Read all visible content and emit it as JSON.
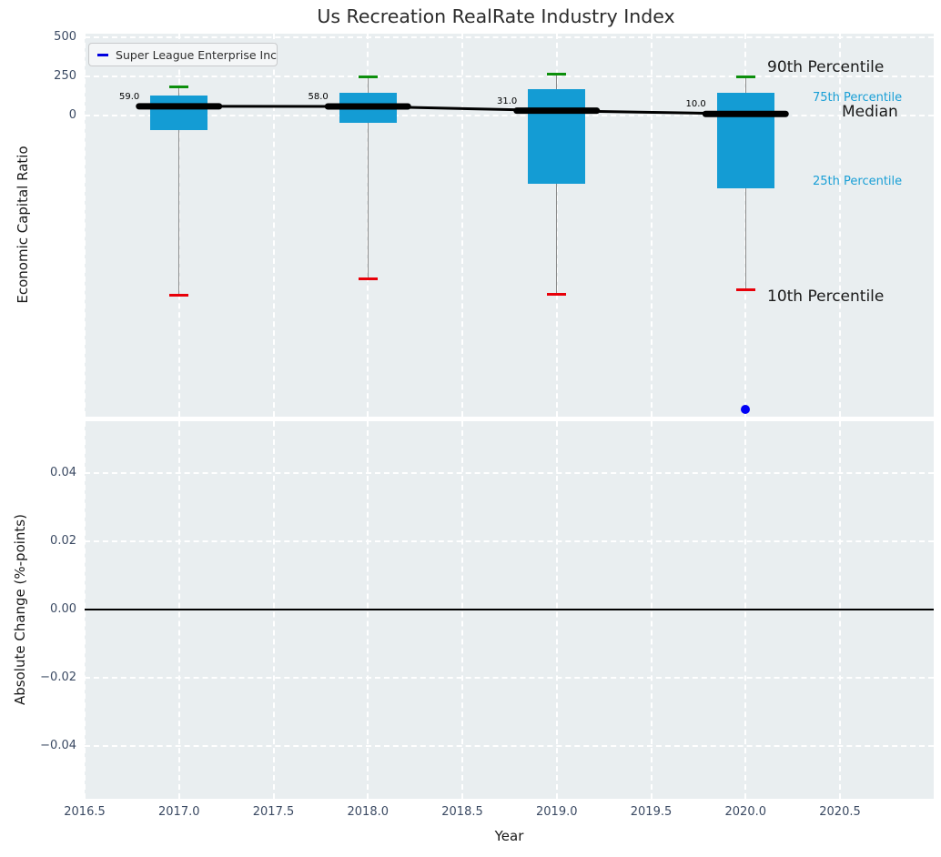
{
  "colors": {
    "box": "#149cd4",
    "percentile_text": "#199fd6",
    "whisker": "#8c8c8c",
    "cap_top": "#0c8f0c",
    "cap_bottom": "#e80009",
    "median_line": "#000000",
    "company_dot": "#0000f5",
    "legend_line": "#0000e0",
    "axes_bg": "#e9eef0",
    "grid": "#ffffff",
    "tick_text": "#3b4a63",
    "label_text": "#1a1a1a"
  },
  "chart_data": [
    {
      "type": "box",
      "title": "Us Recreation RealRate Industry Index",
      "ylabel": "Economic Capital Ratio",
      "legend": [
        "Super League Enterprise Inc"
      ],
      "x": [
        2017,
        2018,
        2019,
        2020
      ],
      "xlim": [
        2016.5,
        2021.0
      ],
      "ylim": [
        -1940,
        525
      ],
      "ytick_values": [
        500,
        250,
        0
      ],
      "ytick_labels": [
        "500",
        "250",
        "0"
      ],
      "grid": true,
      "boxes": [
        {
          "x": 2017,
          "p10": -1150,
          "p25": -95,
          "median": 59.0,
          "p75": 128,
          "p90": 186
        },
        {
          "x": 2018,
          "p10": -1045,
          "p25": -46,
          "median": 58.0,
          "p75": 145,
          "p90": 247
        },
        {
          "x": 2019,
          "p10": -1145,
          "p25": -435,
          "median": 31.0,
          "p75": 168,
          "p90": 267
        },
        {
          "x": 2020,
          "p10": -1115,
          "p25": -465,
          "median": 10.0,
          "p75": 145,
          "p90": 250
        }
      ],
      "median_labels": [
        "59.0",
        "58.0",
        "31.0",
        "10.0"
      ],
      "median_series": {
        "name": "Median",
        "values": [
          59.0,
          58.0,
          31.0,
          10.0
        ]
      },
      "company_scatter": {
        "name": "Super League Enterprise Inc",
        "points": [
          {
            "x": 2020,
            "y": -1880
          }
        ]
      },
      "annotations": [
        {
          "text": "90th Percentile",
          "style": "black-large"
        },
        {
          "text": "75th Percentile",
          "style": "blue-small"
        },
        {
          "text": "Median",
          "style": "black-large"
        },
        {
          "text": "25th Percentile",
          "style": "blue-small"
        },
        {
          "text": "10th Percentile",
          "style": "black-large"
        }
      ]
    },
    {
      "type": "line",
      "ylabel": "Absolute Change (%-points)",
      "xlabel": "Year",
      "ytick_values": [
        0.04,
        0.02,
        0.0,
        -0.02,
        -0.04
      ],
      "ytick_labels": [
        "0.04",
        "0.02",
        "0.00",
        "−0.02",
        "−0.04"
      ],
      "xtick_values": [
        2016.5,
        2017.0,
        2017.5,
        2018.0,
        2018.5,
        2019.0,
        2019.5,
        2020.0,
        2020.5
      ],
      "xtick_labels": [
        "2016.5",
        "2017.0",
        "2017.5",
        "2018.0",
        "2018.5",
        "2019.0",
        "2019.5",
        "2020.0",
        "2020.5"
      ],
      "zero_line": 0.0,
      "series": []
    }
  ]
}
